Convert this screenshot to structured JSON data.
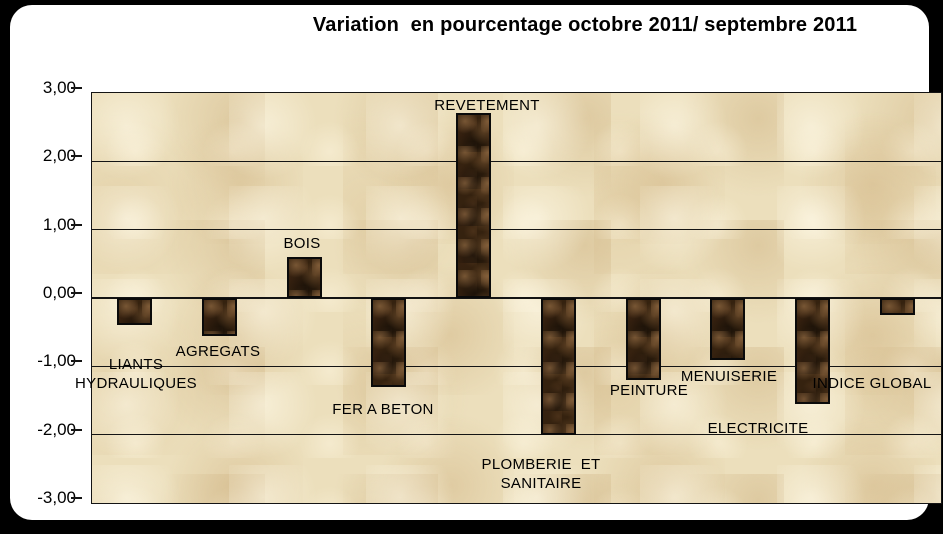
{
  "title": "Variation  en pourcentage octobre 2011/ septembre 2011",
  "y_axis": {
    "tick_labels": [
      "3,00",
      "2,00",
      "1,00",
      "0,00",
      "-1,00",
      "-2,00",
      "-3,00"
    ]
  },
  "chart_data": {
    "type": "bar",
    "title": "Variation  en pourcentage octobre 2011/ septembre 2011",
    "categories": [
      "LIANTS HYDRAULIQUES",
      "AGREGATS",
      "BOIS",
      "FER A BETON",
      "REVETEMENT",
      "PLOMBERIE ET SANITAIRE",
      "PEINTURE",
      "MENUISERIE",
      "ELECTRICITE",
      "INDICE GLOBAL"
    ],
    "values": [
      -0.4,
      -0.55,
      0.6,
      -1.3,
      2.7,
      -2.0,
      -1.2,
      -0.9,
      -1.55,
      -0.25
    ],
    "label_lines": [
      [
        "LIANTS",
        "HYDRAULIQUES"
      ],
      [
        "AGREGATS"
      ],
      [
        "BOIS"
      ],
      [
        "FER A BETON"
      ],
      [
        "REVETEMENT"
      ],
      [
        "PLOMBERIE  ET",
        "SANITAIRE"
      ],
      [
        "PEINTURE"
      ],
      [
        "MENUISERIE"
      ],
      [
        "ELECTRICITE"
      ],
      [
        "INDICE GLOBAL"
      ]
    ],
    "xlabel": "",
    "ylabel": "",
    "ylim": [
      -3.0,
      3.0
    ],
    "y_tick_step": 1.0,
    "decimal_separator": ",",
    "grid": "horizontal",
    "legend": "none",
    "colors": {
      "bar_fill": "#35220f",
      "bar_border": "#0a0a0a",
      "plot_background": "#ecdfbc",
      "gridline": "#141414",
      "text": "#000000",
      "panel_background": "#ffffff",
      "frame_background": "#000000"
    }
  }
}
